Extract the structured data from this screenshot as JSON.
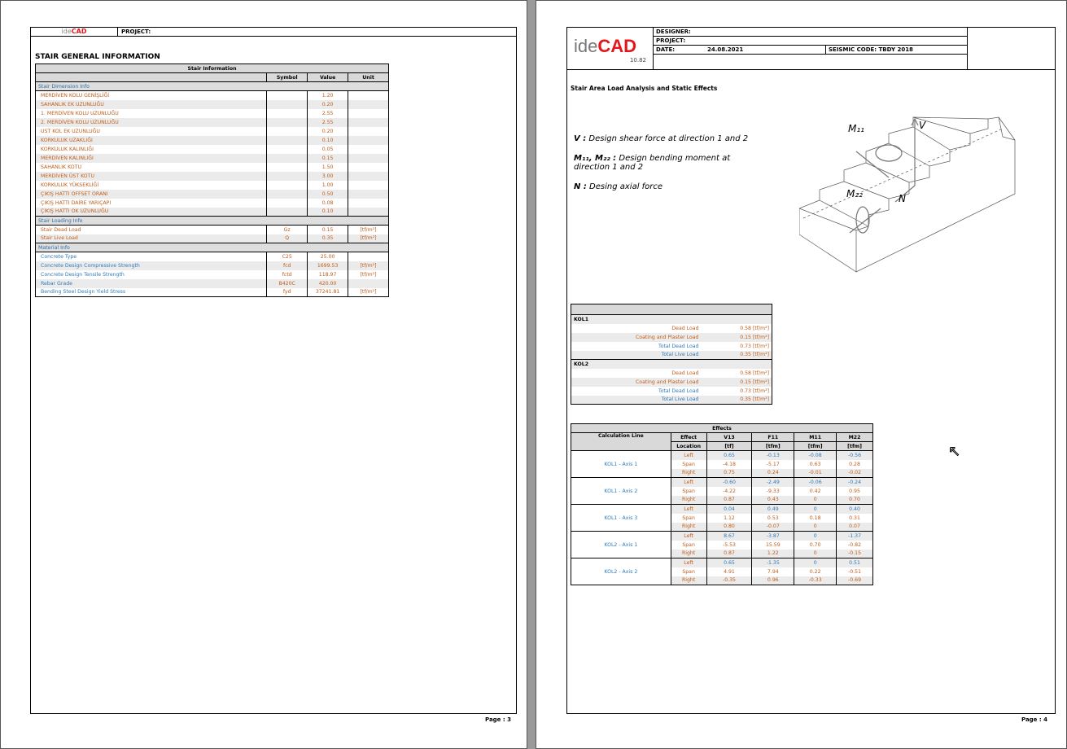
{
  "page3": {
    "logo": {
      "prefix": "ide",
      "brand": "CAD"
    },
    "project_label": "PROJECT:",
    "title": "STAIR GENERAL INFORMATION",
    "table_title": "Stair Information",
    "columns": [
      "",
      "Symbol",
      "Value",
      "Unit"
    ],
    "sections": [
      {
        "name": "Stair Dimension Info",
        "rows": [
          [
            "MERDİVEN KOLU GENİŞLİĞİ",
            "",
            "1.20",
            ""
          ],
          [
            "SAHANLIK EK UZUNLUĞU",
            "",
            "0.20",
            ""
          ],
          [
            "1. MERDİVEN KOLU UZUNLUĞU",
            "",
            "2.55",
            ""
          ],
          [
            "2. MERDİVEN KOLU UZUNLUĞU",
            "",
            "2.55",
            ""
          ],
          [
            "UST KOL EK UZUNLUĞU",
            "",
            "0.20",
            ""
          ],
          [
            "KORKULUK UZAKLIĞI",
            "",
            "0.10",
            ""
          ],
          [
            "KORKULUK KALINLIĞI",
            "",
            "0.05",
            ""
          ],
          [
            "MERDİVEN KALINLIĞI",
            "",
            "0.15",
            ""
          ],
          [
            "SAHANLIK KOTU",
            "",
            "1.50",
            ""
          ],
          [
            "MERDİVEN ÜST KOTU",
            "",
            "3.00",
            ""
          ],
          [
            "KORKULUK YÜKSEKLİĞİ",
            "",
            "1.00",
            ""
          ],
          [
            "ÇIKIŞ HATTI OFFSET ORANI",
            "",
            "0.50",
            ""
          ],
          [
            "ÇIKIŞ HATTI DAİRE YARIÇAPI",
            "",
            "0.08",
            ""
          ],
          [
            "ÇIKIŞ HATTI OK UZUNLUĞU",
            "",
            "0.10",
            ""
          ]
        ]
      },
      {
        "name": "Stair Loading Info",
        "rows": [
          [
            "Stair Dead Load",
            "Gz",
            "0.15",
            "[tf/m²]"
          ],
          [
            "Stair Live Load",
            "Q",
            "0.35",
            "[tf/m²]"
          ]
        ]
      },
      {
        "name": "Material Info",
        "rows": [
          [
            "Concrete Type",
            "C25",
            "25.00",
            ""
          ],
          [
            "Concrete Design Compressive Strength",
            "fcd",
            "1699.53",
            "[tf/m²]"
          ],
          [
            "Concrete Design Tensile Strength",
            "fctd",
            "118.97",
            "[tf/m²]"
          ],
          [
            "Rebar Grade",
            "B420C",
            "420.00",
            ""
          ],
          [
            "Bending Steel Design Yield Stress",
            "fyd",
            "37241.81",
            "[tf/m²]"
          ]
        ]
      }
    ],
    "page_label": "Page : 3"
  },
  "page4": {
    "logo": {
      "prefix": "ide",
      "brand": "CAD",
      "version": "10.82"
    },
    "designer_label": "DESIGNER:",
    "project_label": "PROJECT:",
    "date_label": "DATE:",
    "date_value": "24.08.2021",
    "seismic_code": "SEISMIC CODE: TBDY 2018",
    "title": "Stair Area Load Analysis and Static Effects",
    "legend": [
      {
        "key": "V :",
        "text": " Design shear force at direction 1 and 2"
      },
      {
        "key": "M₁₁, M₂₂ :",
        "text": " Design bending moment at direction 1 and 2"
      },
      {
        "key": "N :",
        "text": " Desing axial force"
      }
    ],
    "diagram_labels": {
      "m11": "M₁₁",
      "v": "V",
      "m22": "M₂₂",
      "n": "N"
    },
    "loads": [
      {
        "name": "KOL1",
        "rows": [
          [
            "Dead Load",
            "0.58 [tf/m²]"
          ],
          [
            "Coating and Plaster Load",
            "0.15 [tf/m²]"
          ],
          [
            "Total Dead Load",
            "0.73 [tf/m²]"
          ],
          [
            "Total Live Load",
            "0.35 [tf/m²]"
          ]
        ]
      },
      {
        "name": "KOL2",
        "rows": [
          [
            "Dead Load",
            "0.58 [tf/m²]"
          ],
          [
            "Coating and Plaster Load",
            "0.15 [tf/m²]"
          ],
          [
            "Total Dead Load",
            "0.73 [tf/m²]"
          ],
          [
            "Total Live Load",
            "0.35 [tf/m²]"
          ]
        ]
      }
    ],
    "effects": {
      "title": "Effects",
      "head1": [
        "Calculation Line",
        "Effect",
        "V13",
        "F11",
        "M11",
        "M22"
      ],
      "head2": [
        "",
        "Location",
        "[tf]",
        "[tfm]",
        "[tfm]",
        "[tfm]"
      ],
      "groups": [
        {
          "line": "KOL1 - Axis 1",
          "rows": [
            [
              "Left",
              "0.65",
              "-0.13",
              "-0.08",
              "-0.56"
            ],
            [
              "Span",
              "-4.18",
              "-5.17",
              "0.63",
              "0.28"
            ],
            [
              "Right",
              "0.75",
              "0.24",
              "-0.01",
              "-0.02"
            ]
          ]
        },
        {
          "line": "KOL1 - Axis 2",
          "rows": [
            [
              "Left",
              "-0.60",
              "-2.49",
              "-0.06",
              "-0.24"
            ],
            [
              "Span",
              "-4.22",
              "-9.33",
              "0.42",
              "0.95"
            ],
            [
              "Right",
              "0.87",
              "0.43",
              "0",
              "0.70"
            ]
          ]
        },
        {
          "line": "KOL1 - Axis 3",
          "rows": [
            [
              "Left",
              "0.04",
              "0.49",
              "0",
              "0.40"
            ],
            [
              "Span",
              "1.12",
              "0.53",
              "0.18",
              "0.31"
            ],
            [
              "Right",
              "0.80",
              "-0.07",
              "0",
              "0.07"
            ]
          ]
        },
        {
          "line": "KOL2 - Axis 1",
          "rows": [
            [
              "Left",
              "8.67",
              "-3.87",
              "0",
              "-1.37"
            ],
            [
              "Span",
              "-5.53",
              "15.59",
              "0.70",
              "-0.82"
            ],
            [
              "Right",
              "0.87",
              "1.22",
              "0",
              "-0.15"
            ]
          ]
        },
        {
          "line": "KOL2 - Axis 2",
          "rows": [
            [
              "Left",
              "0.65",
              "-1.35",
              "0",
              "0.51"
            ],
            [
              "Span",
              "4.91",
              "7.94",
              "0.22",
              "-0.51"
            ],
            [
              "Right",
              "-0.35",
              "0.96",
              "-0.33",
              "-0.69"
            ]
          ]
        }
      ]
    },
    "page_label": "Page : 4"
  },
  "colors": {
    "orange": "#c05e1a",
    "blue": "#2f7ab8",
    "brand_red": "#e3161b"
  }
}
